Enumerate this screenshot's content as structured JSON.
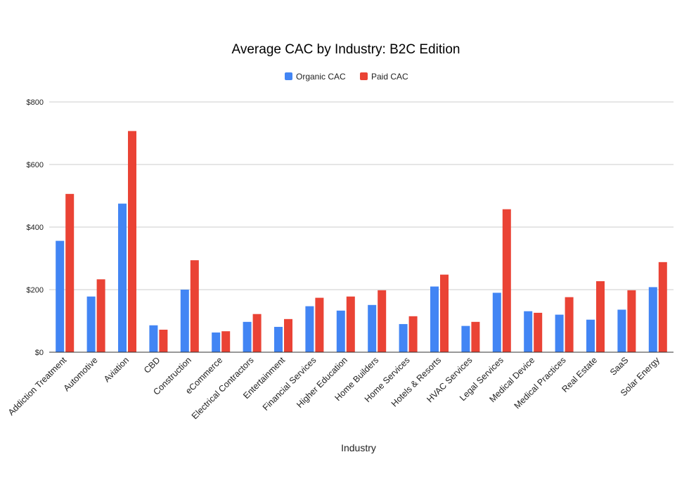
{
  "chart_data": {
    "type": "bar",
    "title": "Average CAC by Industry: B2C Edition",
    "xlabel": "Industry",
    "ylabel": "",
    "ylim": [
      0,
      800
    ],
    "yticks": [
      "$0",
      "$200",
      "$400",
      "$600",
      "$800"
    ],
    "ytick_values": [
      0,
      200,
      400,
      600,
      800
    ],
    "grid": true,
    "legend_position": "top-center",
    "categories": [
      "Addiction Treatment",
      "Automotive",
      "Aviation",
      "CBD",
      "Construction",
      "eCommerce",
      "Electrical Contractors",
      "Entertainment",
      "Financial Services",
      "Higher Education",
      "Home Builders",
      "Home Services",
      "Hotels & Resorts",
      "HVAC Services",
      "Legal Services",
      "Medical Device",
      "Medical Practices",
      "Real Estate",
      "SaaS",
      "Solar Energy"
    ],
    "series": [
      {
        "name": "Organic CAC",
        "color": "#4285f4",
        "values": [
          356,
          178,
          475,
          86,
          200,
          63,
          97,
          81,
          147,
          133,
          151,
          90,
          210,
          84,
          190,
          131,
          120,
          104,
          136,
          208
        ]
      },
      {
        "name": "Paid CAC",
        "color": "#ea4335",
        "values": [
          506,
          233,
          707,
          72,
          294,
          67,
          122,
          106,
          174,
          178,
          198,
          115,
          248,
          97,
          457,
          126,
          176,
          227,
          198,
          288
        ]
      }
    ]
  }
}
